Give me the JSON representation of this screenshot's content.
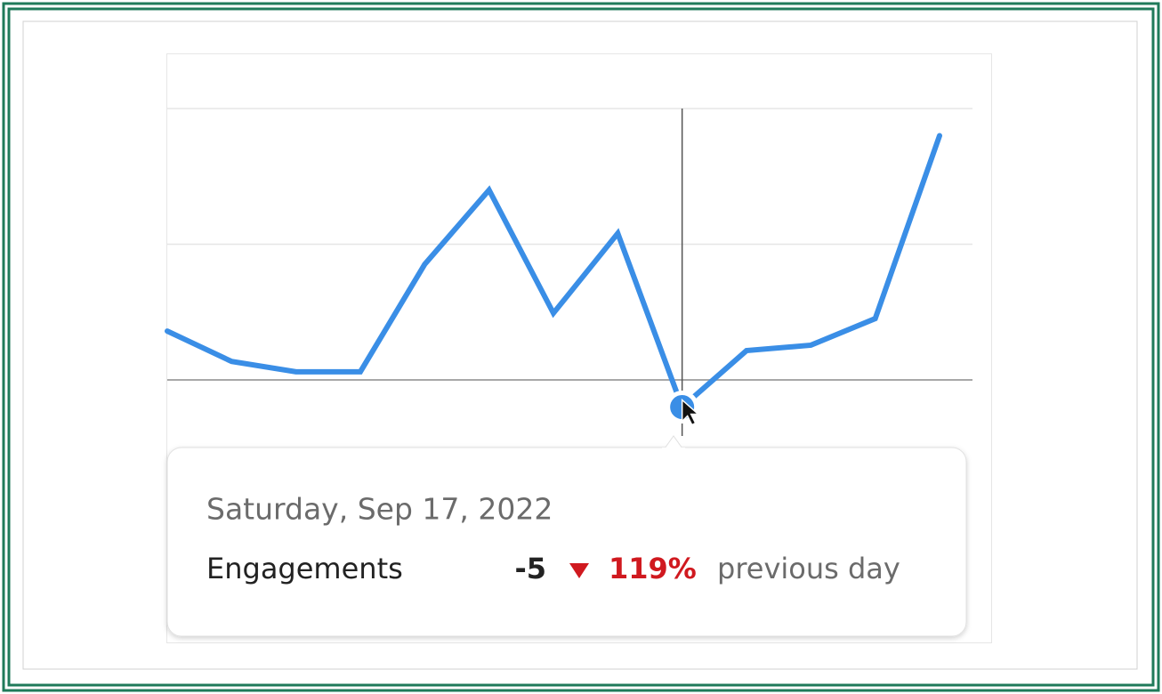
{
  "chart_data": {
    "type": "line",
    "categories": [
      null,
      null,
      null,
      null,
      null,
      null,
      null,
      null,
      null,
      null,
      null,
      null,
      null
    ],
    "series": [
      {
        "name": "Engagements",
        "color": "#3a8ee6",
        "values": [
          9,
          3.4,
          1.5,
          1.5,
          21.3,
          35,
          12.3,
          27,
          -5,
          5.4,
          6.4,
          11.3,
          45
        ]
      }
    ],
    "ylim": [
      -15,
      60
    ],
    "yticks": [
      0,
      25,
      50
    ],
    "grid": true,
    "tooltip": {
      "date": "Saturday, Sep 17, 2022",
      "change": "119%",
      "comparison": "previous day"
    }
  }
}
